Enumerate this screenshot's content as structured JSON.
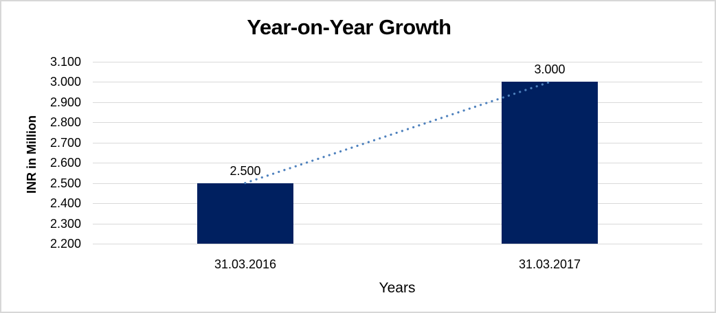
{
  "frame": {
    "background": "#ffffff",
    "border_color": "#d7d7d7"
  },
  "chart_data": {
    "type": "bar",
    "title": "Year-on-Year Growth",
    "xlabel": "Years",
    "ylabel": "INR in Million",
    "categories": [
      "31.03.2016",
      "31.03.2017"
    ],
    "values": [
      2500,
      3000
    ],
    "value_labels": [
      "2.500",
      "3.000"
    ],
    "ylim": [
      2200,
      3100
    ],
    "yticks": [
      {
        "value": 3100,
        "label": "3.100"
      },
      {
        "value": 3000,
        "label": "3.000"
      },
      {
        "value": 2900,
        "label": "2.900"
      },
      {
        "value": 2800,
        "label": "2.800"
      },
      {
        "value": 2700,
        "label": "2.700"
      },
      {
        "value": 2600,
        "label": "2.600"
      },
      {
        "value": 2500,
        "label": "2.500"
      },
      {
        "value": 2400,
        "label": "2.400"
      },
      {
        "value": 2300,
        "label": "2.300"
      },
      {
        "value": 2200,
        "label": "2.200"
      }
    ],
    "grid": "horizontal",
    "legend": "none",
    "bar_color": "#002060",
    "gridline_color": "#d9d9d9",
    "text_color": "#000000",
    "trendline": {
      "style": "dotted",
      "color": "#4e81bd",
      "from_value": 2500,
      "to_value": 3000
    }
  }
}
